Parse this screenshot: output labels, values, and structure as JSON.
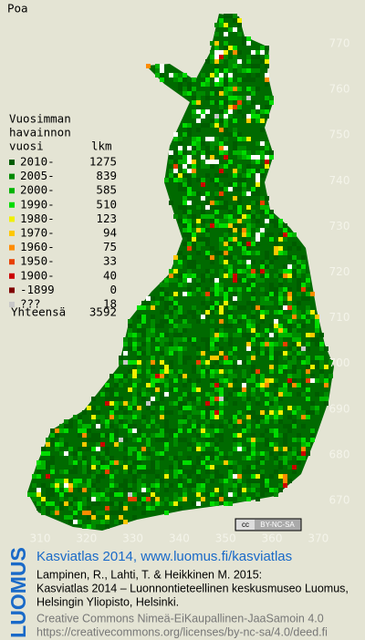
{
  "title": "Poa",
  "legend": {
    "heading": [
      "Vuosimman",
      "havainnon",
      "vuosi"
    ],
    "count_heading": "lkm",
    "rows": [
      {
        "label": "2010-",
        "count": 1275,
        "color": "#005c00"
      },
      {
        "label": "2005-",
        "count": 839,
        "color": "#008a00"
      },
      {
        "label": "2000-",
        "count": 585,
        "color": "#00b400"
      },
      {
        "label": "1990-",
        "count": 510,
        "color": "#00dc00"
      },
      {
        "label": "1980-",
        "count": 123,
        "color": "#f0f000"
      },
      {
        "label": "1970-",
        "count": 94,
        "color": "#ffc800"
      },
      {
        "label": "1960-",
        "count": 75,
        "color": "#ff8c00"
      },
      {
        "label": "1950-",
        "count": 33,
        "color": "#e84000"
      },
      {
        "label": "1900-",
        "count": 40,
        "color": "#cc0000"
      },
      {
        "label": "-1899",
        "count": 0,
        "color": "#800000"
      },
      {
        "label": "???",
        "count": 18,
        "color": "#c8c8c8"
      }
    ],
    "total": {
      "label": "Yhteensä",
      "count": 3592
    }
  },
  "grid_labels": {
    "north": [
      770,
      760,
      750,
      740,
      730,
      720,
      710,
      700,
      690,
      680,
      670
    ],
    "east": [
      310,
      320,
      330,
      340,
      350,
      360,
      370
    ]
  },
  "license_badge": {
    "cc": "cc",
    "text": "BY-NC-SA"
  },
  "footer": {
    "logo": "LUOMUS",
    "link": "Kasviatlas 2014, www.luomus.fi/kasviatlas",
    "citation": [
      "Lampinen, R., Lahti, T. & Heikkinen M. 2015:",
      "Kasviatlas 2014 – Luonnontieteellinen keskusmuseo Luomus,",
      "Helsingin Yliopisto, Helsinki."
    ],
    "license": [
      "Creative Commons Nimeä-EiKaupallinen-JaaSamoin 4.0",
      "https://creativecommons.org/licenses/by-nc-sa/4.0/deed.fi"
    ]
  }
}
